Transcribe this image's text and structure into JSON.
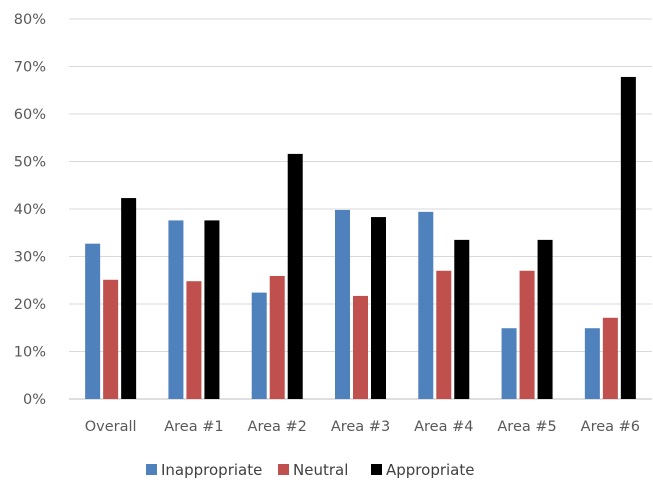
{
  "chart_data": {
    "type": "bar",
    "title": "",
    "xlabel": "",
    "ylabel": "",
    "categories": [
      "Overall",
      "Area #1",
      "Area #2",
      "Area #3",
      "Area #4",
      "Area #5",
      "Area #6"
    ],
    "series": [
      {
        "name": "Inappropriate",
        "color": "#4f81bd",
        "values": [
          32.7,
          37.6,
          22.4,
          39.8,
          39.4,
          14.9,
          14.9
        ]
      },
      {
        "name": "Neutral",
        "color": "#c0504d",
        "values": [
          25.1,
          24.8,
          25.9,
          21.7,
          27.0,
          27.0,
          17.1
        ]
      },
      {
        "name": "Appropriate",
        "color": "#000000",
        "values": [
          42.3,
          37.6,
          51.6,
          38.3,
          33.5,
          33.5,
          67.8
        ]
      }
    ],
    "y_ticks": [
      "0%",
      "10%",
      "20%",
      "30%",
      "40%",
      "50%",
      "60%",
      "70%",
      "80%"
    ],
    "ylim": [
      0,
      80
    ],
    "unit": "%",
    "grid": true,
    "legend_position": "bottom"
  }
}
